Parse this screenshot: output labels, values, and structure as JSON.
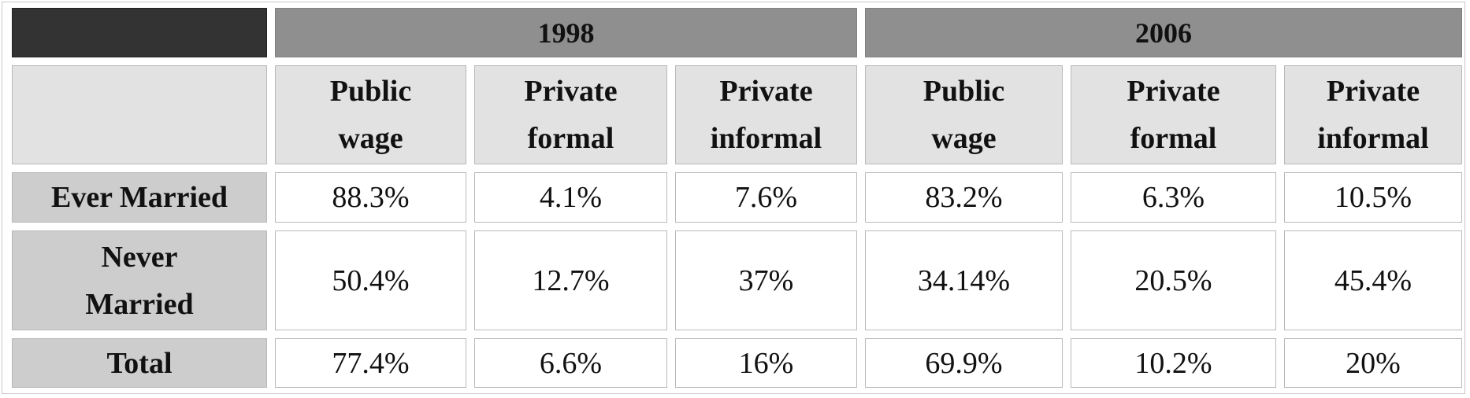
{
  "table": {
    "years": [
      "1998",
      "2006"
    ],
    "columns": [
      "Public wage",
      "Private formal",
      "Private informal",
      "Public wage",
      "Private formal",
      "Private informal"
    ],
    "rows": [
      {
        "label": "Ever Married",
        "cells": [
          "88.3%",
          "4.1%",
          "7.6%",
          "83.2%",
          "6.3%",
          "10.5%"
        ]
      },
      {
        "label": "Never Married",
        "cells": [
          "50.4%",
          "12.7%",
          "37%",
          "34.14%",
          "20.5%",
          "45.4%"
        ]
      },
      {
        "label": "Total",
        "cells": [
          "77.4%",
          "6.6%",
          "16%",
          "69.9%",
          "10.2%",
          "20%"
        ]
      }
    ]
  }
}
